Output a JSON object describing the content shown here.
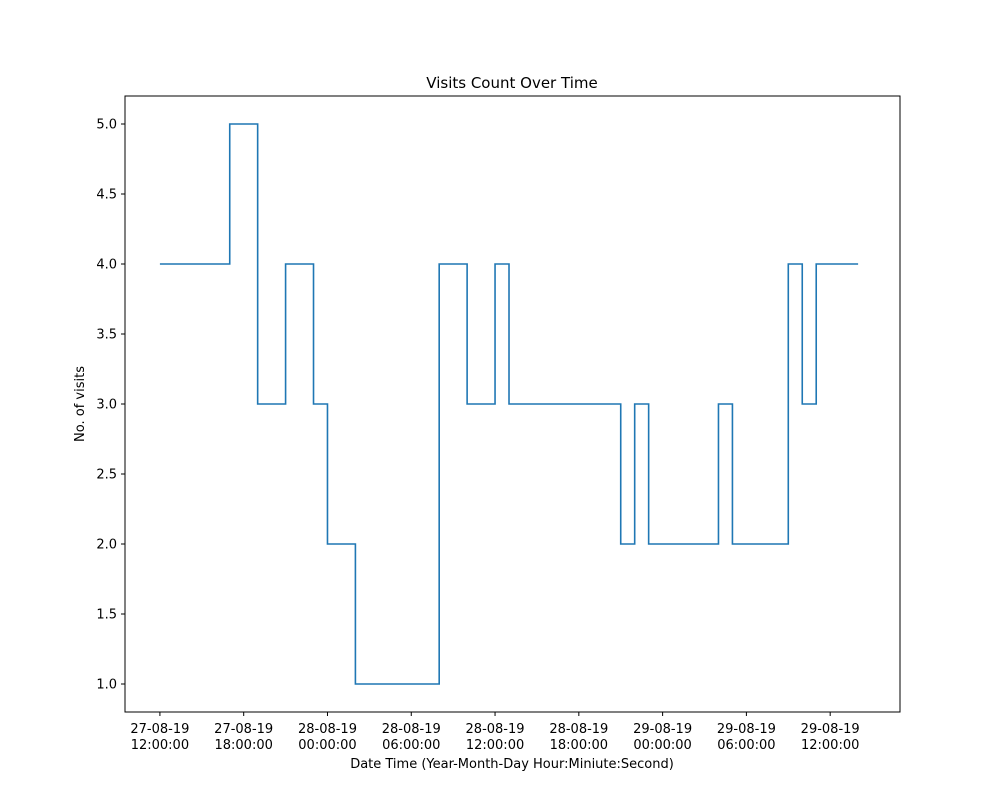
{
  "chart_data": {
    "type": "line",
    "step": "post",
    "title": "Visits Count Over Time",
    "xlabel": "Date Time (Year-Month-Day Hour:Miniute:Second)",
    "ylabel": "No. of visits",
    "x_type": "datetime",
    "xlim": [
      "2019-08-27T09:30:00",
      "2019-08-29T17:00:00"
    ],
    "ylim": [
      0.8,
      5.2
    ],
    "grid": false,
    "x_ticks": [
      {
        "value": "2019-08-27T12:00:00",
        "date": "27-08-19",
        "time": "12:00:00"
      },
      {
        "value": "2019-08-27T18:00:00",
        "date": "27-08-19",
        "time": "18:00:00"
      },
      {
        "value": "2019-08-28T00:00:00",
        "date": "28-08-19",
        "time": "00:00:00"
      },
      {
        "value": "2019-08-28T06:00:00",
        "date": "28-08-19",
        "time": "06:00:00"
      },
      {
        "value": "2019-08-28T12:00:00",
        "date": "28-08-19",
        "time": "12:00:00"
      },
      {
        "value": "2019-08-28T18:00:00",
        "date": "28-08-19",
        "time": "18:00:00"
      },
      {
        "value": "2019-08-29T00:00:00",
        "date": "29-08-19",
        "time": "00:00:00"
      },
      {
        "value": "2019-08-29T06:00:00",
        "date": "29-08-19",
        "time": "06:00:00"
      },
      {
        "value": "2019-08-29T12:00:00",
        "date": "29-08-19",
        "time": "12:00:00"
      }
    ],
    "y_ticks": [
      {
        "value": 1.0,
        "label": "1.0"
      },
      {
        "value": 1.5,
        "label": "1.5"
      },
      {
        "value": 2.0,
        "label": "2.0"
      },
      {
        "value": 2.5,
        "label": "2.5"
      },
      {
        "value": 3.0,
        "label": "3.0"
      },
      {
        "value": 3.5,
        "label": "3.5"
      },
      {
        "value": 4.0,
        "label": "4.0"
      },
      {
        "value": 4.5,
        "label": "4.5"
      },
      {
        "value": 5.0,
        "label": "5.0"
      }
    ],
    "series": [
      {
        "color": "#1f77b4",
        "x": [
          "2019-08-27T12:00:00",
          "2019-08-27T17:00:00",
          "2019-08-27T19:00:00",
          "2019-08-27T21:00:00",
          "2019-08-27T23:00:00",
          "2019-08-28T00:00:00",
          "2019-08-28T02:00:00",
          "2019-08-28T08:00:00",
          "2019-08-28T10:00:00",
          "2019-08-28T12:00:00",
          "2019-08-28T13:00:00",
          "2019-08-28T21:00:00",
          "2019-08-28T22:00:00",
          "2019-08-28T23:00:00",
          "2019-08-29T04:00:00",
          "2019-08-29T05:00:00",
          "2019-08-29T09:00:00",
          "2019-08-29T10:00:00",
          "2019-08-29T11:00:00",
          "2019-08-29T12:00:00",
          "2019-08-29T14:00:00"
        ],
        "y": [
          4,
          5,
          3,
          4,
          3,
          2,
          1,
          4,
          3,
          4,
          3,
          2,
          3,
          2,
          3,
          2,
          4,
          3,
          4,
          4,
          4
        ]
      }
    ]
  }
}
